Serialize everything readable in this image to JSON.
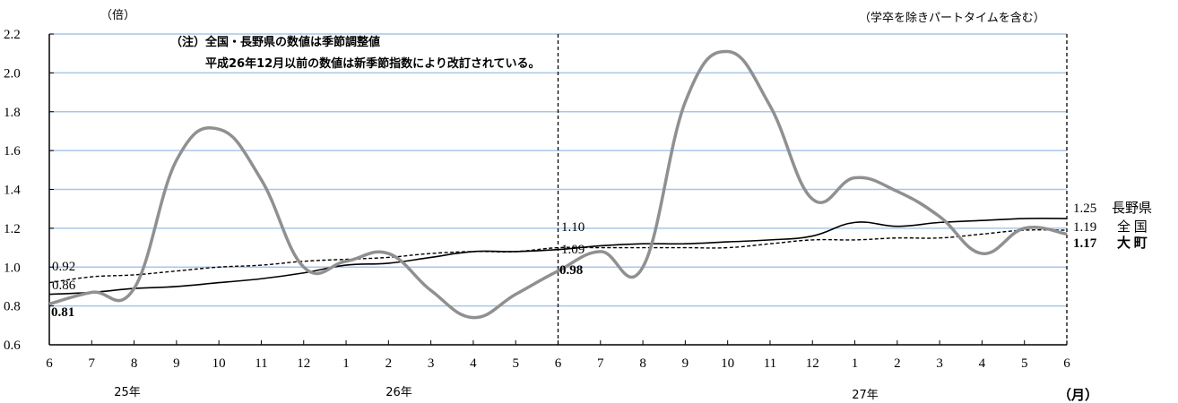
{
  "chart_data": {
    "type": "line",
    "y_unit_label": "（倍）",
    "x_unit_label": "（月）",
    "top_right_note": "（学卒を除きパートタイムを含む）",
    "notes": [
      "（注）全国・長野県の数値は季節調整値",
      "平成26年12月以前の数値は新季節指数により改訂されている。"
    ],
    "ylim": [
      0.6,
      2.2
    ],
    "yticks": [
      "0.6",
      "0.8",
      "1.0",
      "1.2",
      "1.4",
      "1.6",
      "1.8",
      "2.0",
      "2.2"
    ],
    "categories": [
      "6",
      "7",
      "8",
      "9",
      "10",
      "11",
      "12",
      "1",
      "2",
      "3",
      "4",
      "5",
      "6",
      "7",
      "8",
      "9",
      "10",
      "11",
      "12",
      "1",
      "2",
      "3",
      "4",
      "5",
      "6"
    ],
    "year_labels": [
      "25年",
      "26年",
      "27年"
    ],
    "grid": true,
    "series": [
      {
        "name": "長野県",
        "color": "#000000",
        "style": "solid",
        "values": [
          0.86,
          0.87,
          0.89,
          0.9,
          0.92,
          0.94,
          0.97,
          1.01,
          1.02,
          1.05,
          1.08,
          1.08,
          1.09,
          1.11,
          1.12,
          1.12,
          1.13,
          1.14,
          1.16,
          1.23,
          1.21,
          1.23,
          1.24,
          1.25,
          1.25
        ]
      },
      {
        "name": "全国",
        "color": "#000000",
        "style": "dashed",
        "values": [
          0.92,
          0.95,
          0.96,
          0.98,
          1.0,
          1.01,
          1.03,
          1.04,
          1.05,
          1.07,
          1.08,
          1.08,
          1.1,
          1.1,
          1.1,
          1.1,
          1.1,
          1.12,
          1.14,
          1.14,
          1.15,
          1.15,
          1.17,
          1.19,
          1.19
        ]
      },
      {
        "name": "大町",
        "color": "#909090",
        "style": "solid",
        "values": [
          0.81,
          0.87,
          0.89,
          1.55,
          1.71,
          1.45,
          1.0,
          1.03,
          1.07,
          0.88,
          0.74,
          0.86,
          0.98,
          1.08,
          1.0,
          1.85,
          2.11,
          1.83,
          1.35,
          1.46,
          1.39,
          1.26,
          1.07,
          1.2,
          1.17
        ]
      }
    ],
    "start_labels": [
      "0.92",
      "0.86",
      "0.81"
    ],
    "mid_labels": [
      "1.10",
      "1.09",
      "0.98"
    ],
    "end_labels": [
      {
        "value": "1.25",
        "name": "長野県"
      },
      {
        "value": "1.19",
        "name": "全 国"
      },
      {
        "value": "1.17",
        "name": "大 町"
      }
    ]
  }
}
